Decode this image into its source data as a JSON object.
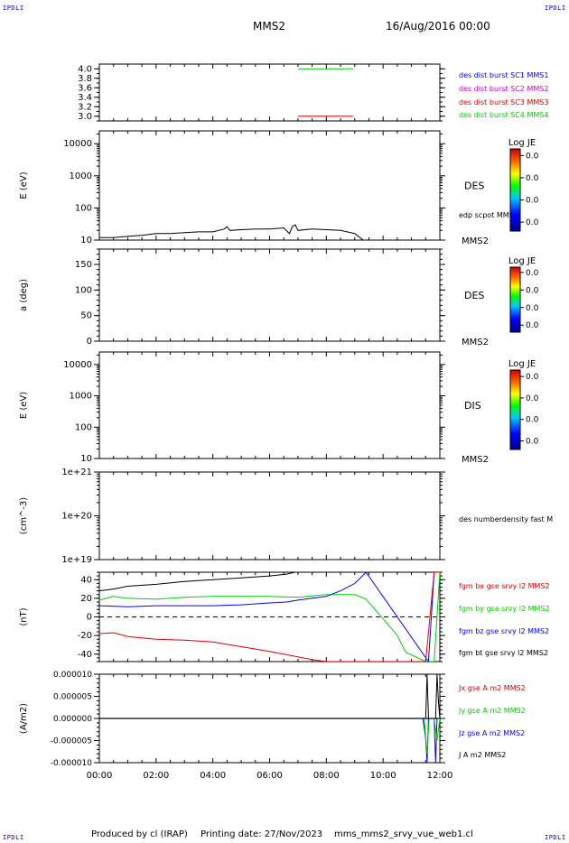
{
  "header": {
    "corner_left_top": "IPDLI",
    "corner_right_top": "IPDLI",
    "corner_left_bottom": "IPDLI",
    "corner_right_bottom": "IPDLI",
    "spacecraft": "MMS2",
    "datetime": "16/Aug/2016 00:00"
  },
  "footer": {
    "produced_by": "Produced by cl (IRAP)",
    "printing_date": "Printing date: 27/Nov/2023",
    "filename": "mms_mms2_srvy_vue_web1.cl"
  },
  "colors": {
    "black": "#000000",
    "blue": "#0000ff",
    "magenta": "#cc00cc",
    "red": "#dd0000",
    "green": "#00cc00"
  },
  "chart_data": [
    {
      "type": "line",
      "ylim": [
        2.9,
        4.1
      ],
      "yticks": [
        "4.0",
        "3.8",
        "3.6",
        "3.4",
        "3.2",
        "3.0"
      ],
      "ytick_values": [
        4.0,
        3.8,
        3.6,
        3.4,
        3.2,
        3.0
      ],
      "legend": [
        {
          "text": "des dist burst SC1 MMS1",
          "color": "#0000ff"
        },
        {
          "text": "des dist burst SC2 MMS2",
          "color": "#cc00cc"
        },
        {
          "text": "des dist burst SC3 MMS3",
          "color": "#dd0000"
        },
        {
          "text": "des dist burst SC4 MMS4",
          "color": "#00cc00"
        }
      ],
      "series": [
        {
          "color": "#00cc00",
          "x": [
            7.0,
            8.95
          ],
          "y": [
            4.0,
            4.0
          ]
        },
        {
          "color": "#dd0000",
          "x": [
            7.0,
            8.95
          ],
          "y": [
            3.0,
            3.0
          ]
        }
      ]
    },
    {
      "type": "line",
      "ylabel": "E (eV)",
      "yscale": "log",
      "ylim": [
        10,
        25000
      ],
      "yticks": [
        "10000",
        "1000",
        "100",
        "10"
      ],
      "ytick_values": [
        10000,
        1000,
        100,
        10
      ],
      "species": "DES",
      "legend": [
        {
          "text": "edp scpot MMS2",
          "color": "#000000"
        }
      ],
      "bottom_label": "MMS2",
      "colorbar": {
        "title": "Log JE",
        "ticks": [
          "0.0",
          "0.0",
          "0.0",
          "0.0"
        ]
      },
      "series": [
        {
          "name": "edp scpot MMS2",
          "color": "#000000",
          "x": [
            0.0,
            0.5,
            1.0,
            1.5,
            2.0,
            2.5,
            3.0,
            3.5,
            4.0,
            4.4,
            4.5,
            4.6,
            5.0,
            5.5,
            6.0,
            6.5,
            6.7,
            6.8,
            6.9,
            7.0,
            7.5,
            8.0,
            8.5,
            9.0,
            9.3
          ],
          "y": [
            12,
            12,
            13,
            14,
            16,
            16,
            17,
            18,
            18,
            22,
            26,
            20,
            21,
            22,
            22,
            24,
            16,
            26,
            30,
            20,
            22,
            21,
            20,
            16,
            10
          ]
        }
      ]
    },
    {
      "type": "heatmap",
      "ylabel": "a (deg)",
      "ylim": [
        0,
        180
      ],
      "yticks": [
        "150",
        "100",
        "50",
        "0"
      ],
      "ytick_values": [
        150,
        100,
        50,
        0
      ],
      "species": "DES",
      "bottom_label": "MMS2",
      "colorbar": {
        "title": "Log JE",
        "ticks": [
          "0.0",
          "0.0",
          "0.0",
          "0.0"
        ]
      }
    },
    {
      "type": "heatmap",
      "ylabel": "E (eV)",
      "yscale": "log",
      "ylim": [
        10,
        25000
      ],
      "yticks": [
        "10000",
        "1000",
        "100",
        "10"
      ],
      "ytick_values": [
        10000,
        1000,
        100,
        10
      ],
      "species": "DIS",
      "bottom_label": "MMS2",
      "colorbar": {
        "title": "Log JE",
        "ticks": [
          "0.0",
          "0.0",
          "0.0",
          "0.0"
        ]
      }
    },
    {
      "type": "line",
      "ylabel": "(cm^-3)",
      "yscale": "log",
      "ylim": [
        1e+19,
        1e+21
      ],
      "yticks": [
        "1e+21",
        "1e+20",
        "1e+19"
      ],
      "ytick_values": [
        1e+21,
        1e+20,
        1e+19
      ],
      "legend": [
        {
          "text": "des numberdensity fast M",
          "color": "#000000"
        }
      ],
      "series": []
    },
    {
      "type": "line",
      "ylabel": "(nT)",
      "ylim": [
        -48,
        48
      ],
      "yticks": [
        "40",
        "20",
        "0",
        "-20",
        "-40"
      ],
      "ytick_values": [
        40,
        20,
        0,
        -20,
        -40
      ],
      "legend": [
        {
          "text": "fgm bx gse srvy l2 MMS2",
          "color": "#dd0000"
        },
        {
          "text": "fgm by gse srvy l2 MMS2",
          "color": "#00cc00"
        },
        {
          "text": "fgm bz gse srvy l2 MMS2",
          "color": "#0000ff"
        },
        {
          "text": "fgm bt gse srvy l2 MMS2",
          "color": "#000000"
        }
      ],
      "series": [
        {
          "name": "fgm bt gse srvy l2 MMS2",
          "color": "#000000",
          "x": [
            0.0,
            0.5,
            1.0,
            2.0,
            3.0,
            4.0,
            5.0,
            6.0,
            6.6,
            6.9
          ],
          "y": [
            28,
            30,
            33,
            35,
            38,
            40,
            42,
            44,
            46,
            48
          ]
        },
        {
          "name": "fgm by gse srvy l2 MMS2",
          "color": "#00cc00",
          "x": [
            0.0,
            0.5,
            1.0,
            2.0,
            3.0,
            4.0,
            5.0,
            6.0,
            7.0,
            8.0,
            9.0,
            9.4,
            10.0,
            10.5,
            10.8,
            11.5,
            11.8,
            12.0
          ],
          "y": [
            18,
            22,
            20,
            19,
            21,
            22,
            22,
            22,
            21,
            24,
            24,
            19,
            -2,
            -20,
            -38,
            -48,
            -48,
            48
          ]
        },
        {
          "name": "fgm bz gse srvy l2 MMS2",
          "color": "#0000ff",
          "x": [
            0.0,
            1.0,
            2.0,
            3.0,
            4.0,
            5.0,
            6.0,
            6.6,
            7.0,
            8.0,
            8.5,
            9.0,
            9.4,
            11.6,
            11.8
          ],
          "y": [
            12,
            11,
            12,
            12,
            12,
            13,
            15,
            16,
            18,
            22,
            28,
            36,
            48,
            -48,
            48
          ]
        },
        {
          "name": "fgm bx gse srvy l2 MMS2",
          "color": "#dd0000",
          "x": [
            0.0,
            0.5,
            1.0,
            2.0,
            3.0,
            4.0,
            5.0,
            6.0,
            6.5,
            7.5,
            8.0,
            11.5,
            11.8,
            12.0
          ],
          "y": [
            -18,
            -17,
            -21,
            -24,
            -25,
            -27,
            -32,
            -37,
            -40,
            -46,
            -48,
            -48,
            48,
            48
          ]
        }
      ]
    },
    {
      "type": "line",
      "ylabel": "(A/m2)",
      "ylim": [
        -1e-05,
        1e-05
      ],
      "yticks": [
        "0.000010",
        "0.000005",
        "0.000000",
        "-0.000005",
        "-0.000010"
      ],
      "ytick_values": [
        1e-05,
        5e-06,
        0,
        -5e-06,
        -1e-05
      ],
      "legend": [
        {
          "text": "Jx gse A m2 MMS2",
          "color": "#dd0000"
        },
        {
          "text": "Jy gse A m2 MMS2",
          "color": "#00cc00"
        },
        {
          "text": "Jz gse A m2 MMS2",
          "color": "#0000ff"
        },
        {
          "text": "J A m2 MMS2",
          "color": "#000000"
        }
      ],
      "series": [
        {
          "name": "Jz gse A m2 MMS2",
          "color": "#0000ff",
          "x": [
            0.0,
            11.4,
            11.5,
            11.55,
            11.6,
            11.8,
            11.85,
            11.9,
            12.0
          ],
          "y": [
            0,
            0,
            -4.5e-06,
            -1e-05,
            0,
            0,
            -1e-05,
            0,
            0
          ]
        },
        {
          "name": "Jy gse A m2 MMS2",
          "color": "#00cc00",
          "x": [
            0.0,
            11.45,
            11.55,
            11.62,
            11.8,
            11.9,
            12.0
          ],
          "y": [
            0,
            0,
            -8e-06,
            0,
            0,
            -5e-06,
            0
          ]
        },
        {
          "name": "J A m2 MMS2",
          "color": "#000000",
          "x": [
            0.0,
            11.5,
            11.55,
            11.6,
            11.85,
            11.9,
            11.95,
            12.0
          ],
          "y": [
            0,
            0,
            1e-05,
            0,
            0,
            1e-05,
            4e-06,
            0
          ]
        }
      ]
    }
  ],
  "xaxis": {
    "ticks": [
      "00:00",
      "02:00",
      "04:00",
      "06:00",
      "08:00",
      "10:00",
      "12:00"
    ],
    "tick_values": [
      0,
      2,
      4,
      6,
      8,
      10,
      12
    ],
    "range": [
      0,
      12
    ]
  }
}
